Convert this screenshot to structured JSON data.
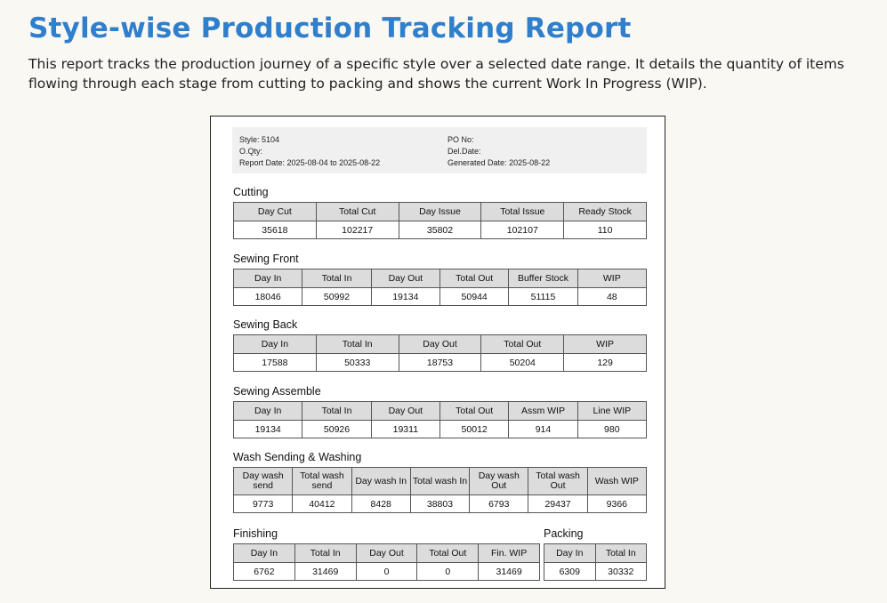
{
  "header": {
    "title": "Style-wise Production Tracking Report",
    "description": "This report tracks the production journey of a specific style over a selected date range. It details the quantity of items flowing through each stage from cutting to packing and shows the current Work In Progress (WIP)."
  },
  "meta": {
    "style_label": "Style:",
    "style": "5104",
    "oqty_label": "O.Qty:",
    "oqty": "",
    "report_date_label": "Report Date:",
    "report_date": "2025-08-04 to 2025-08-22",
    "po_label": "PO No:",
    "po": "",
    "del_label": "Del.Date:",
    "del": "",
    "generated_label": "Generated Date:",
    "generated": "2025-08-22"
  },
  "cutting": {
    "title": "Cutting",
    "headers": [
      "Day Cut",
      "Total Cut",
      "Day Issue",
      "Total Issue",
      "Ready Stock"
    ],
    "values": [
      "35618",
      "102217",
      "35802",
      "102107",
      "110"
    ]
  },
  "sewing_front": {
    "title": "Sewing Front",
    "headers": [
      "Day In",
      "Total In",
      "Day Out",
      "Total Out",
      "Buffer Stock",
      "WIP"
    ],
    "values": [
      "18046",
      "50992",
      "19134",
      "50944",
      "51115",
      "48"
    ]
  },
  "sewing_back": {
    "title": "Sewing Back",
    "headers": [
      "Day In",
      "Total In",
      "Day Out",
      "Total Out",
      "WIP"
    ],
    "values": [
      "17588",
      "50333",
      "18753",
      "50204",
      "129"
    ]
  },
  "sewing_assemble": {
    "title": "Sewing Assemble",
    "headers": [
      "Day In",
      "Total In",
      "Day Out",
      "Total Out",
      "Assm WIP",
      "Line WIP"
    ],
    "values": [
      "19134",
      "50926",
      "19311",
      "50012",
      "914",
      "980"
    ]
  },
  "wash": {
    "title": "Wash Sending & Washing",
    "headers": [
      "Day wash send",
      "Total wash send",
      "Day wash In",
      "Total wash In",
      "Day wash Out",
      "Total wash Out",
      "Wash WIP"
    ],
    "values": [
      "9773",
      "40412",
      "8428",
      "38803",
      "6793",
      "29437",
      "9366"
    ]
  },
  "finishing": {
    "title": "Finishing",
    "headers": [
      "Day In",
      "Total In",
      "Day Out",
      "Total Out",
      "Fin. WIP"
    ],
    "values": [
      "6762",
      "31469",
      "0",
      "0",
      "31469"
    ]
  },
  "packing": {
    "title": "Packing",
    "headers": [
      "Day In",
      "Total In"
    ],
    "values": [
      "6309",
      "30332"
    ]
  }
}
